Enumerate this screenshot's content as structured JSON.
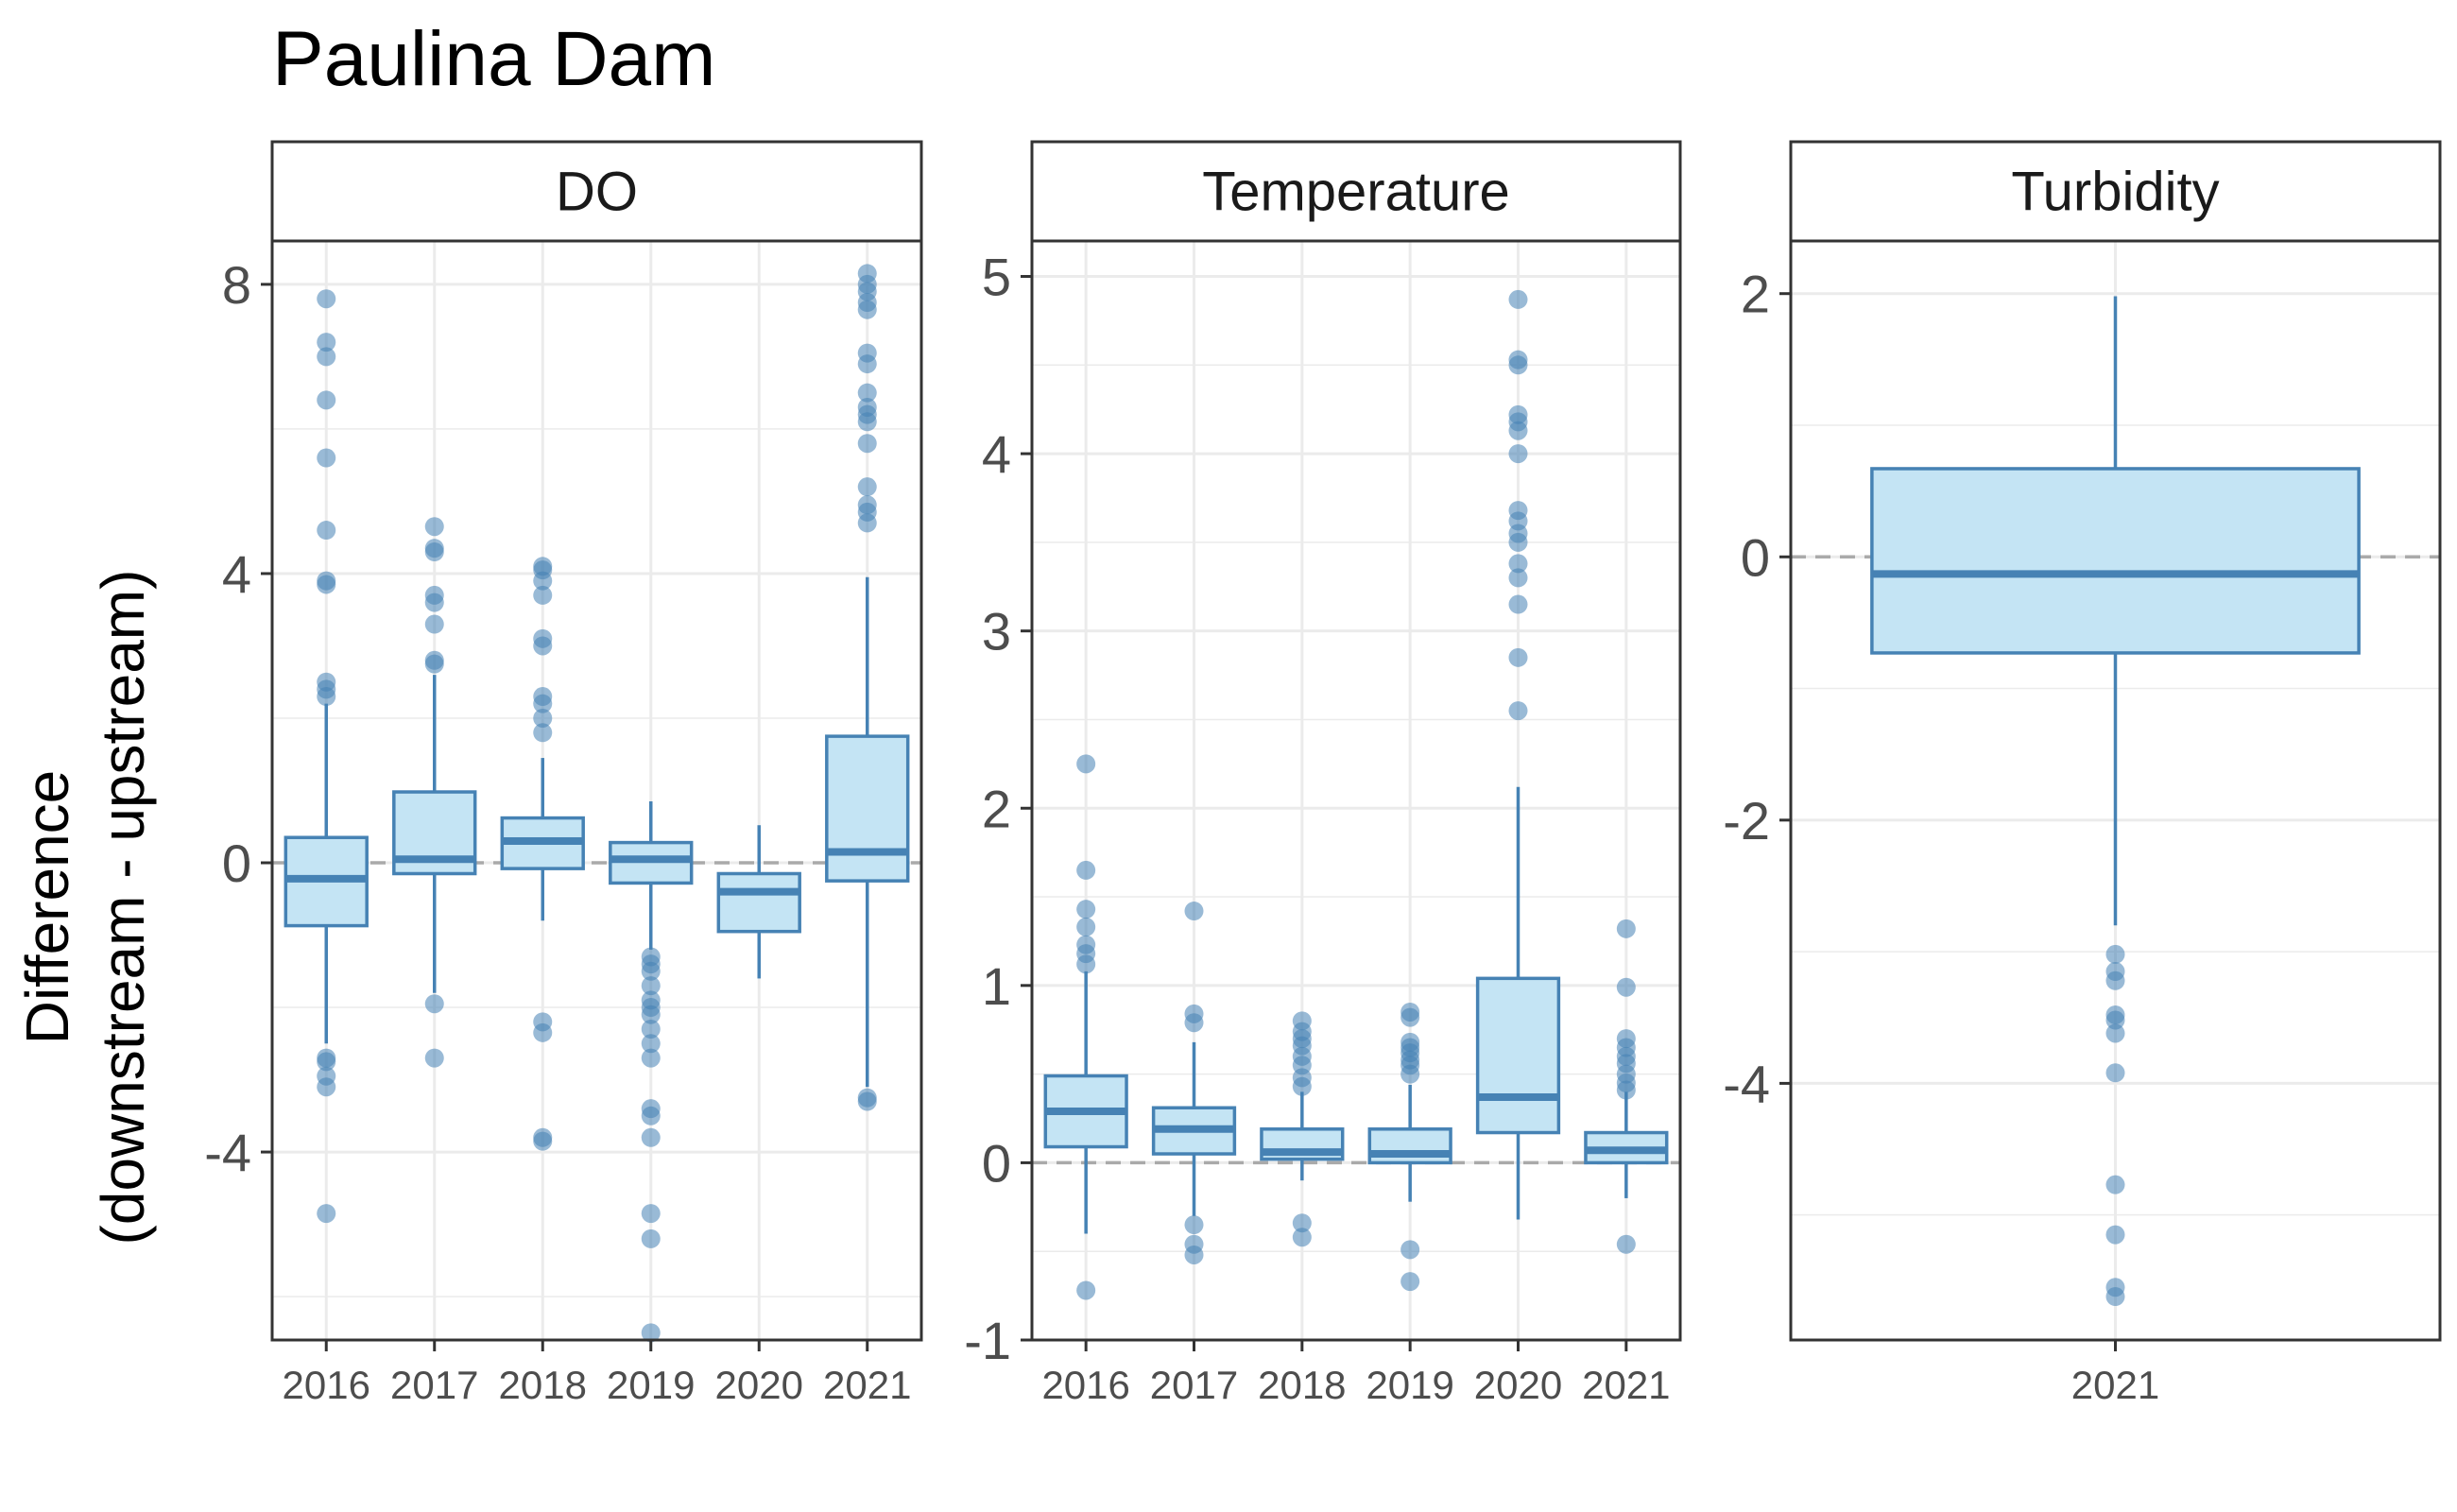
{
  "chart_data": {
    "type": "box",
    "title": "Paulina Dam",
    "ylabel": [
      "Difference",
      "(downstream - upstream)"
    ],
    "xlabel": "",
    "reference_line_y": 0,
    "colors": {
      "box_fill": "#c4e4f4",
      "box_stroke": "#4682b4",
      "outlier": "#4682b4",
      "grid": "#ebebeb",
      "reference": "#aaaaaa",
      "strip_bg": "#ffffff",
      "panel_border": "#333333"
    },
    "panels": [
      {
        "strip": "DO",
        "ylim": [
          -6.6,
          8.6
        ],
        "yticks": [
          -4,
          0,
          4,
          8
        ],
        "ytick_labels": [
          "-4",
          "0",
          "4",
          "8"
        ],
        "minor_yticks": [
          -6,
          -2,
          2,
          6
        ],
        "categories": [
          "2016",
          "2017",
          "2018",
          "2019",
          "2020",
          "2021"
        ],
        "boxes": [
          {
            "category": "2016",
            "whisker_low": -2.5,
            "q1": -0.87,
            "median": -0.22,
            "q3": 0.35,
            "whisker_high": 2.2,
            "outliers": [
              7.8,
              7.2,
              7.0,
              6.4,
              5.6,
              4.6,
              3.9,
              3.85,
              2.5,
              2.4,
              2.3,
              -2.7,
              -2.75,
              -2.95,
              -3.1,
              -4.85
            ]
          },
          {
            "category": "2017",
            "whisker_low": -1.8,
            "q1": -0.15,
            "median": 0.05,
            "q3": 0.98,
            "whisker_high": 2.6,
            "outliers": [
              4.65,
              4.35,
              4.3,
              3.7,
              3.6,
              3.3,
              2.8,
              2.75,
              -1.95,
              -2.7
            ]
          },
          {
            "category": "2018",
            "whisker_low": -0.8,
            "q1": -0.08,
            "median": 0.3,
            "q3": 0.62,
            "whisker_high": 1.45,
            "outliers": [
              4.1,
              4.05,
              3.9,
              3.7,
              3.1,
              3.0,
              2.3,
              2.2,
              2.0,
              1.8,
              -2.2,
              -2.35,
              -3.8,
              -3.85
            ]
          },
          {
            "category": "2019",
            "whisker_low": -1.2,
            "q1": -0.28,
            "median": 0.05,
            "q3": 0.28,
            "whisker_high": 0.85,
            "outliers": [
              -1.3,
              -1.4,
              -1.5,
              -1.7,
              -1.9,
              -2.0,
              -2.1,
              -2.3,
              -2.5,
              -2.7,
              -3.4,
              -3.5,
              -3.8,
              -4.85,
              -5.2,
              -6.5
            ]
          },
          {
            "category": "2020",
            "whisker_low": -1.6,
            "q1": -0.95,
            "median": -0.4,
            "q3": -0.15,
            "whisker_high": 0.52,
            "outliers": []
          },
          {
            "category": "2021",
            "whisker_low": -3.1,
            "q1": -0.25,
            "median": 0.15,
            "q3": 1.75,
            "whisker_high": 3.95,
            "outliers": [
              8.15,
              8.0,
              7.9,
              7.75,
              7.65,
              7.05,
              6.9,
              6.5,
              6.3,
              6.2,
              6.1,
              5.8,
              5.2,
              4.95,
              4.85,
              4.7,
              -3.25,
              -3.3
            ]
          }
        ]
      },
      {
        "strip": "Temperature",
        "ylim": [
          -1,
          5.2
        ],
        "yticks": [
          -1,
          0,
          1,
          2,
          3,
          4,
          5
        ],
        "ytick_labels": [
          "-1",
          "0",
          "1",
          "2",
          "3",
          "4",
          "5"
        ],
        "minor_yticks": [
          -0.5,
          0.5,
          1.5,
          2.5,
          3.5,
          4.5
        ],
        "categories": [
          "2016",
          "2017",
          "2018",
          "2019",
          "2020",
          "2021"
        ],
        "boxes": [
          {
            "category": "2016",
            "whisker_low": -0.4,
            "q1": 0.09,
            "median": 0.29,
            "q3": 0.49,
            "whisker_high": 1.08,
            "outliers": [
              2.25,
              1.65,
              1.43,
              1.33,
              1.23,
              1.18,
              1.12,
              -0.72
            ]
          },
          {
            "category": "2017",
            "whisker_low": -0.3,
            "q1": 0.05,
            "median": 0.19,
            "q3": 0.31,
            "whisker_high": 0.68,
            "outliers": [
              1.42,
              0.84,
              0.79,
              -0.35,
              -0.46,
              -0.52
            ]
          },
          {
            "category": "2018",
            "whisker_low": -0.1,
            "q1": 0.02,
            "median": 0.06,
            "q3": 0.19,
            "whisker_high": 0.4,
            "outliers": [
              0.8,
              0.74,
              0.7,
              0.66,
              0.6,
              0.55,
              0.48,
              0.43,
              -0.34,
              -0.42
            ]
          },
          {
            "category": "2019",
            "whisker_low": -0.22,
            "q1": 0.0,
            "median": 0.05,
            "q3": 0.19,
            "whisker_high": 0.44,
            "outliers": [
              0.85,
              0.82,
              0.68,
              0.65,
              0.62,
              0.58,
              0.55,
              0.5,
              -0.49,
              -0.67
            ]
          },
          {
            "category": "2020",
            "whisker_low": -0.32,
            "q1": 0.17,
            "median": 0.37,
            "q3": 1.04,
            "whisker_high": 2.12,
            "outliers": [
              4.87,
              4.53,
              4.5,
              4.22,
              4.18,
              4.13,
              4.0,
              3.68,
              3.62,
              3.55,
              3.5,
              3.38,
              3.3,
              3.15,
              2.85,
              2.55
            ]
          },
          {
            "category": "2021",
            "whisker_low": -0.2,
            "q1": 0.0,
            "median": 0.07,
            "q3": 0.17,
            "whisker_high": 0.4,
            "outliers": [
              1.32,
              0.99,
              0.7,
              0.65,
              0.6,
              0.56,
              0.5,
              0.45,
              0.41,
              -0.46
            ]
          }
        ]
      },
      {
        "strip": "Turbidity",
        "ylim": [
          -5.95,
          2.4
        ],
        "yticks": [
          -4,
          -2,
          0,
          2
        ],
        "ytick_labels": [
          "-4",
          "-2",
          "0",
          "2"
        ],
        "minor_yticks": [
          -5,
          -3,
          -1,
          1
        ],
        "categories": [
          "2021"
        ],
        "boxes": [
          {
            "category": "2021",
            "whisker_low": -2.8,
            "q1": -0.73,
            "median": -0.13,
            "q3": 0.67,
            "whisker_high": 1.98,
            "outliers": [
              -3.02,
              -3.15,
              -3.22,
              -3.48,
              -3.52,
              -3.62,
              -3.92,
              -4.77,
              -5.15,
              -5.55,
              -5.62
            ]
          }
        ]
      }
    ]
  }
}
